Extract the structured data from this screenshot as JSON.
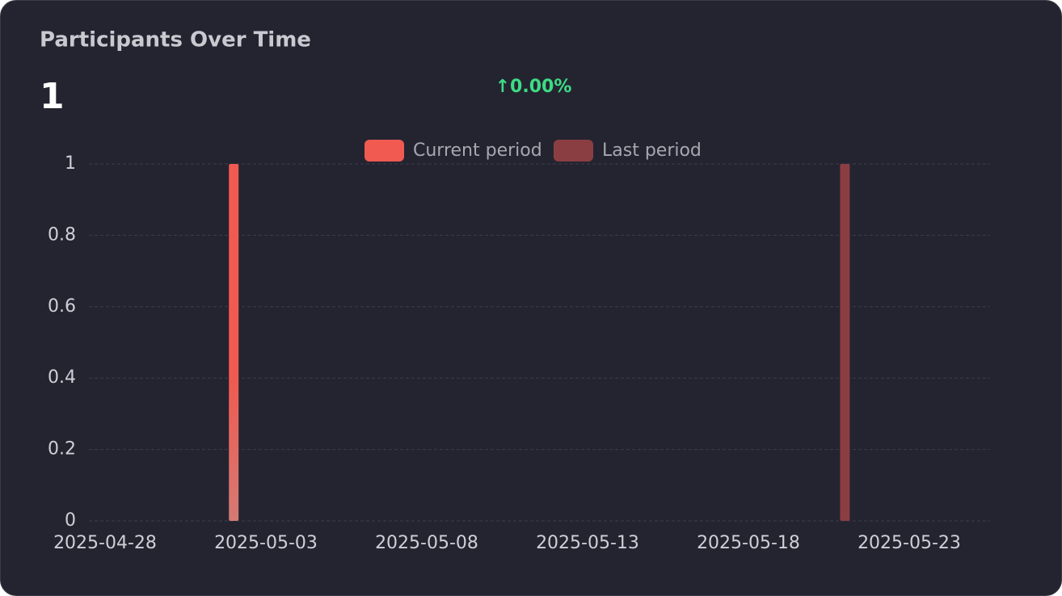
{
  "header": {
    "title": "Participants Over Time",
    "value": 1,
    "change": "↑0.00%"
  },
  "chart_data": {
    "type": "bar",
    "series": [
      {
        "name": "Current period",
        "color": "#f05a50",
        "x": [
          "2025-05-02"
        ],
        "values": [
          1
        ]
      },
      {
        "name": "Last period",
        "color": "#8b3e42",
        "x": [
          "2025-05-21"
        ],
        "values": [
          1
        ]
      }
    ],
    "xlim": [
      "2025-04-28",
      "2025-05-25"
    ],
    "xticks": [
      "2025-04-28",
      "2025-05-03",
      "2025-05-08",
      "2025-05-13",
      "2025-05-18",
      "2025-05-23"
    ],
    "ylim": [
      0,
      1
    ],
    "yticks": [
      0,
      0.2,
      0.4,
      0.6,
      0.8,
      1
    ],
    "grid": true,
    "legend": "top"
  }
}
